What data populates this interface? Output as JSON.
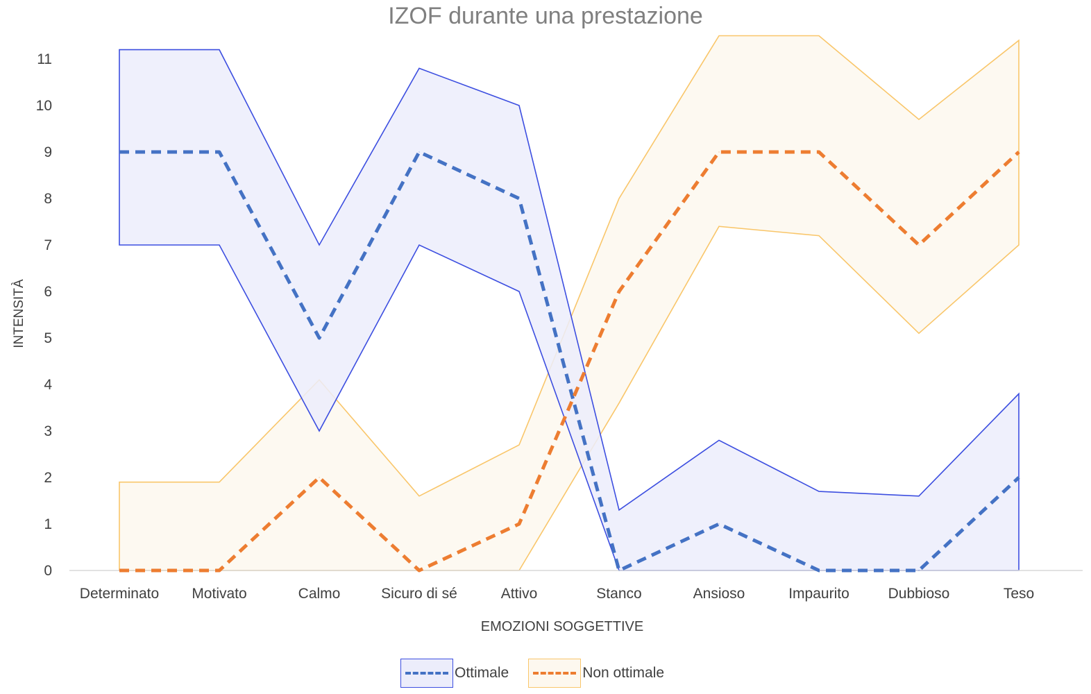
{
  "chart_data": {
    "type": "line",
    "title": "IZOF durante una prestazione",
    "xlabel": "EMOZIONI SOGGETTIVE",
    "ylabel": "INTENSITÀ",
    "categories": [
      "Determinato",
      "Motivato",
      "Calmo",
      "Sicuro di sé",
      "Attivo",
      "Stanco",
      "Ansioso",
      "Impaurito",
      "Dubbioso",
      "Teso"
    ],
    "ylim": [
      0,
      11
    ],
    "yticks": [
      "0",
      "1",
      "2",
      "3",
      "4",
      "5",
      "6",
      "7",
      "8",
      "9",
      "10",
      "11"
    ],
    "grid": false,
    "legend_position": "bottom",
    "series": [
      {
        "name": "Ottimale",
        "values": [
          9,
          9,
          5,
          9,
          8,
          0,
          1,
          0,
          0,
          2
        ],
        "band_upper": [
          11.2,
          11.2,
          7,
          10.8,
          10,
          1.3,
          2.8,
          1.7,
          1.6,
          3.8
        ],
        "band_lower": [
          7,
          7,
          3,
          7,
          6,
          0,
          0,
          0,
          0,
          0
        ],
        "line_color": "#4472c4",
        "band_stroke": "#3c4ee0",
        "band_fill": "#ecedfb"
      },
      {
        "name": "Non ottimale",
        "values": [
          0,
          0,
          2,
          0,
          1,
          6,
          9,
          9,
          7,
          9
        ],
        "band_upper": [
          1.9,
          1.9,
          4.1,
          1.6,
          2.7,
          8,
          11.5,
          11.5,
          9.7,
          11.4
        ],
        "band_lower": [
          0,
          0,
          0,
          0,
          0,
          3.6,
          7.4,
          7.2,
          5.1,
          7
        ],
        "line_color": "#ed7d31",
        "band_stroke": "#f9c66a",
        "band_fill": "#fdf8ef"
      }
    ]
  }
}
